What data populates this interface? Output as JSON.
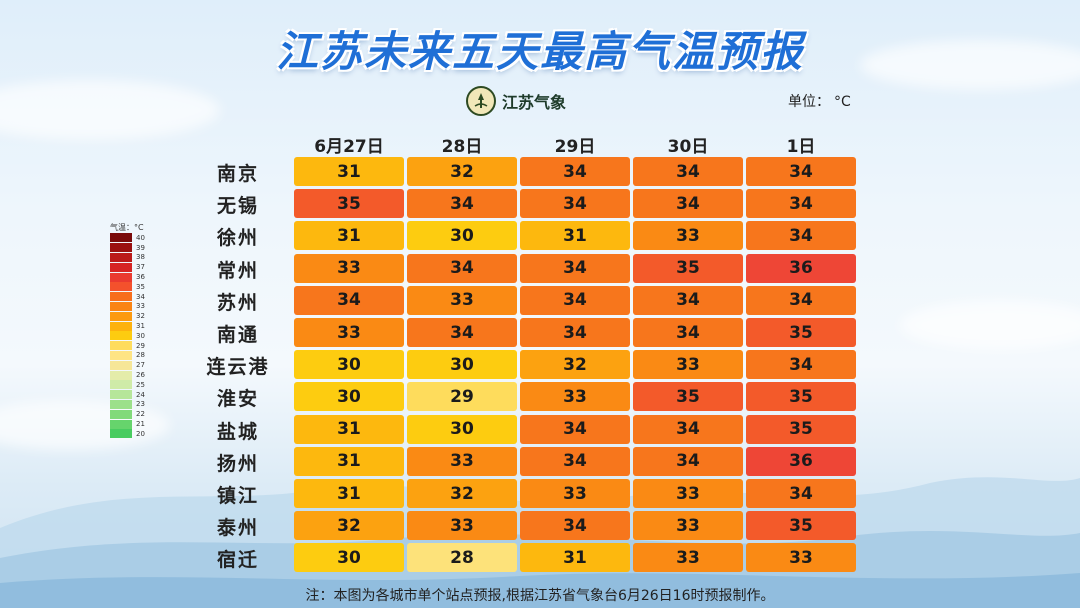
{
  "title": "江苏未来五天最高气温预报",
  "logo_text": "江苏气象",
  "unit_label": "单位：",
  "unit_value": "°C",
  "columns": [
    "6月27日",
    "28日",
    "29日",
    "30日",
    "1日"
  ],
  "rows": [
    {
      "city": "南京",
      "values": [
        31,
        32,
        34,
        34,
        34
      ]
    },
    {
      "city": "无锡",
      "values": [
        35,
        34,
        34,
        34,
        34
      ]
    },
    {
      "city": "徐州",
      "values": [
        31,
        30,
        31,
        33,
        34
      ]
    },
    {
      "city": "常州",
      "values": [
        33,
        34,
        34,
        35,
        36
      ]
    },
    {
      "city": "苏州",
      "values": [
        34,
        33,
        34,
        34,
        34
      ]
    },
    {
      "city": "南通",
      "values": [
        33,
        34,
        34,
        34,
        35
      ]
    },
    {
      "city": "连云港",
      "values": [
        30,
        30,
        32,
        33,
        34
      ]
    },
    {
      "city": "淮安",
      "values": [
        30,
        29,
        33,
        35,
        35
      ]
    },
    {
      "city": "盐城",
      "values": [
        31,
        30,
        34,
        34,
        35
      ]
    },
    {
      "city": "扬州",
      "values": [
        31,
        33,
        34,
        34,
        36
      ]
    },
    {
      "city": "镇江",
      "values": [
        31,
        32,
        33,
        33,
        34
      ]
    },
    {
      "city": "泰州",
      "values": [
        32,
        33,
        34,
        33,
        35
      ]
    },
    {
      "city": "宿迁",
      "values": [
        30,
        28,
        31,
        33,
        33
      ]
    }
  ],
  "legend": {
    "title": "气温：°C",
    "entries": [
      {
        "label": "40",
        "color": "#7a0a0a"
      },
      {
        "label": "39",
        "color": "#9b1010"
      },
      {
        "label": "38",
        "color": "#bb1a1a"
      },
      {
        "label": "37",
        "color": "#d62424"
      },
      {
        "label": "36",
        "color": "#ea3a30"
      },
      {
        "label": "35",
        "color": "#f4512c"
      },
      {
        "label": "34",
        "color": "#f76e1c"
      },
      {
        "label": "33",
        "color": "#fa8414"
      },
      {
        "label": "32",
        "color": "#fc9a10"
      },
      {
        "label": "31",
        "color": "#fdb20e"
      },
      {
        "label": "30",
        "color": "#fdcc10"
      },
      {
        "label": "29",
        "color": "#fedc5c"
      },
      {
        "label": "28",
        "color": "#fee484"
      },
      {
        "label": "27",
        "color": "#f6e698"
      },
      {
        "label": "26",
        "color": "#e4ecaa"
      },
      {
        "label": "25",
        "color": "#cfeba8"
      },
      {
        "label": "24",
        "color": "#b6e69a"
      },
      {
        "label": "23",
        "color": "#9ce08a"
      },
      {
        "label": "22",
        "color": "#82da7a"
      },
      {
        "label": "21",
        "color": "#66d46c"
      },
      {
        "label": "20",
        "color": "#48cc60"
      }
    ]
  },
  "cell_colors": {
    "28": "#fde27a",
    "29": "#fedc5c",
    "30": "#fdcc10",
    "31": "#fdb80e",
    "32": "#fca210",
    "33": "#fa8a14",
    "34": "#f7761c",
    "35": "#f35a2a",
    "36": "#ee4636"
  },
  "note": "注：本图为各城市单个站点预报,根据江苏省气象台6月26日16时预报制作。"
}
